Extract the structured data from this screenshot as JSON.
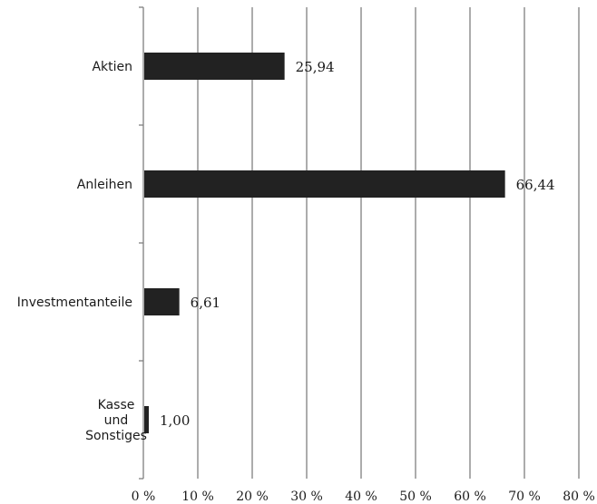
{
  "chart_data": {
    "type": "bar",
    "orientation": "horizontal",
    "categories": [
      "Aktien",
      "Anleihen",
      "Investmentanteile",
      "Kasse und Sonstiges"
    ],
    "category_lines": [
      [
        "Aktien"
      ],
      [
        "Anleihen"
      ],
      [
        "Investmentanteile"
      ],
      [
        "Kasse",
        "und",
        "Sonstiges"
      ]
    ],
    "values": [
      25.94,
      66.44,
      6.61,
      1.0
    ],
    "value_labels": [
      "25,94",
      "66,44",
      "6,61",
      "1,00"
    ],
    "xlim": [
      0,
      80
    ],
    "xticks": [
      0,
      10,
      20,
      30,
      40,
      50,
      60,
      70,
      80
    ],
    "xtick_labels": [
      "0 %",
      "10 %",
      "20 %",
      "30 %",
      "40 %",
      "50 %",
      "60 %",
      "70 %",
      "80 %"
    ],
    "grid": "vertical",
    "bar_color": "#222222",
    "grid_color": "#7f7f7f",
    "legend": "none"
  }
}
